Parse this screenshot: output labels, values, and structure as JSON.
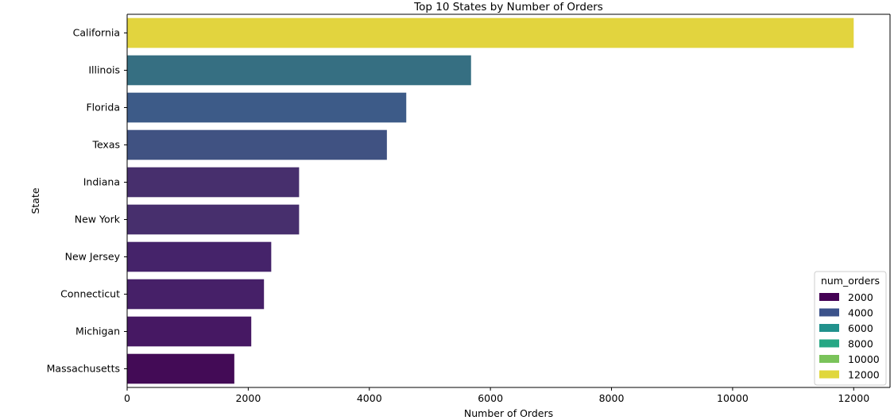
{
  "chart_data": {
    "type": "bar",
    "orientation": "horizontal",
    "title": "Top 10 States by Number of Orders",
    "xlabel": "Number of Orders",
    "ylabel": "State",
    "xlim": [
      0,
      12600
    ],
    "xticks": [
      0,
      2000,
      4000,
      6000,
      8000,
      10000,
      12000
    ],
    "categories": [
      "California",
      "Illinois",
      "Florida",
      "Texas",
      "Indiana",
      "New York",
      "New Jersey",
      "Connecticut",
      "Michigan",
      "Massachusetts"
    ],
    "values": [
      12000,
      5680,
      4610,
      4290,
      2840,
      2840,
      2380,
      2260,
      2050,
      1770
    ],
    "colors": [
      "#e2d43e",
      "#366f82",
      "#3d5b88",
      "#405282",
      "#472f6d",
      "#472f6d",
      "#45236a",
      "#462068",
      "#461863",
      "#430b56"
    ],
    "grid": false,
    "legend": {
      "title": "num_orders",
      "position": "lower-right",
      "items": [
        {
          "label": "2000",
          "color": "#440154"
        },
        {
          "label": "4000",
          "color": "#3b528b"
        },
        {
          "label": "6000",
          "color": "#21918c"
        },
        {
          "label": "8000",
          "color": "#25a784"
        },
        {
          "label": "10000",
          "color": "#7ac35a"
        },
        {
          "label": "12000",
          "color": "#e0d73c"
        }
      ]
    }
  }
}
